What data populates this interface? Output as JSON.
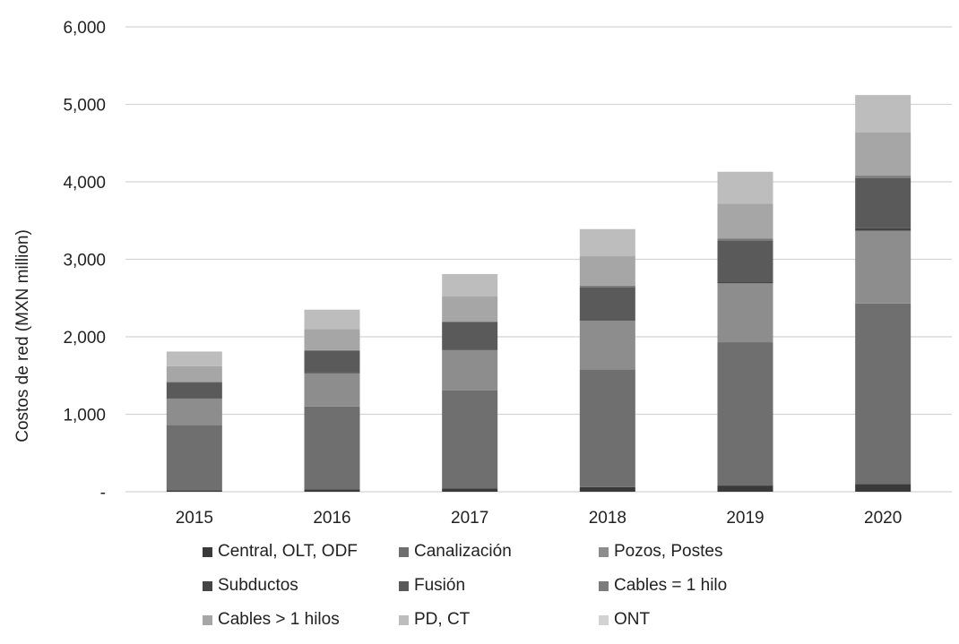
{
  "chart_data": {
    "type": "bar",
    "stacked": true,
    "title": "",
    "xlabel": "",
    "ylabel": "Costos de red (MXN million)",
    "categories": [
      "2015",
      "2016",
      "2017",
      "2018",
      "2019",
      "2020"
    ],
    "ylim": [
      0,
      6000
    ],
    "yticks": [
      {
        "value": 0,
        "label": "-"
      },
      {
        "value": 1000,
        "label": "1,000"
      },
      {
        "value": 2000,
        "label": "2,000"
      },
      {
        "value": 3000,
        "label": "3,000"
      },
      {
        "value": 4000,
        "label": "4,000"
      },
      {
        "value": 5000,
        "label": "5,000"
      },
      {
        "value": 6000,
        "label": "6,000"
      }
    ],
    "grid": true,
    "legend_position": "bottom",
    "series": [
      {
        "name": "Central, OLT, ODF",
        "color": "#3a3a3a",
        "values": [
          20,
          30,
          40,
          60,
          80,
          100
        ]
      },
      {
        "name": "Canalización",
        "color": "#6f6f6f",
        "values": [
          840,
          1070,
          1270,
          1520,
          1850,
          2330
        ]
      },
      {
        "name": "Pozos, Postes",
        "color": "#8d8d8d",
        "values": [
          340,
          430,
          520,
          630,
          760,
          940
        ]
      },
      {
        "name": "Subductos",
        "color": "#454545",
        "values": [
          10,
          15,
          15,
          20,
          25,
          30
        ]
      },
      {
        "name": "Fusión",
        "color": "#5a5a5a",
        "values": [
          200,
          270,
          340,
          410,
          530,
          650
        ]
      },
      {
        "name": "Cables = 1 hilo",
        "color": "#7c7c7c",
        "values": [
          10,
          15,
          15,
          20,
          25,
          30
        ]
      },
      {
        "name": "Cables > 1 hilos",
        "color": "#a6a6a6",
        "values": [
          200,
          270,
          320,
          380,
          450,
          560
        ]
      },
      {
        "name": "PD, CT",
        "color": "#bdbdbd",
        "values": [
          190,
          250,
          290,
          350,
          410,
          480
        ]
      },
      {
        "name": "ONT",
        "color": "#d2d2d2",
        "values": [
          0,
          0,
          0,
          0,
          0,
          0
        ]
      }
    ]
  }
}
